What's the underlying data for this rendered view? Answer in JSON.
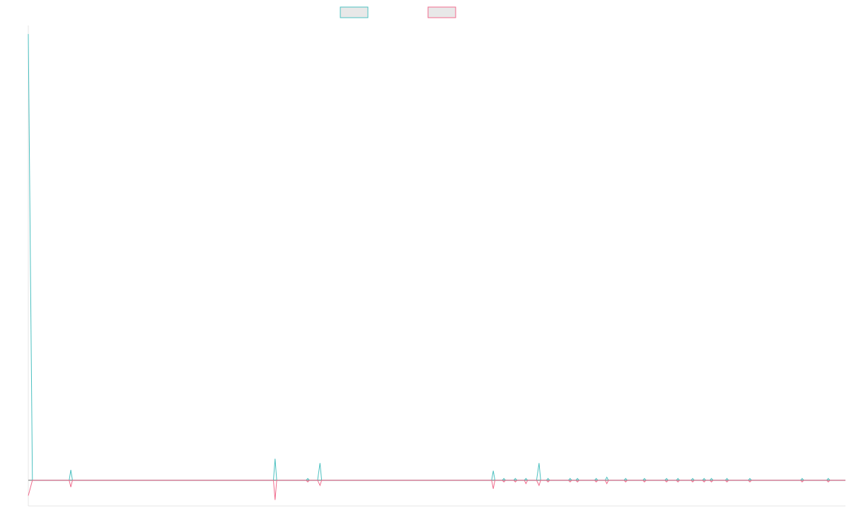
{
  "chart_data": {
    "type": "line",
    "title": "",
    "xlabel": "",
    "ylabel": "",
    "grid": false,
    "legend_placement": "top-center",
    "x_range": [
      0,
      1000
    ],
    "ylim": [
      -3,
      53
    ],
    "series": [
      {
        "color": "#4bc0c0",
        "legend_fill": "#e8e8e8",
        "points": [
          [
            0,
            52
          ],
          [
            5,
            0
          ],
          [
            50,
            0
          ],
          [
            52,
            1.2
          ],
          [
            54,
            0
          ],
          [
            300,
            0
          ],
          [
            302,
            2.5
          ],
          [
            304,
            0
          ],
          [
            340,
            0
          ],
          [
            342,
            0.2
          ],
          [
            344,
            0
          ],
          [
            354,
            0
          ],
          [
            357,
            2
          ],
          [
            359,
            0
          ],
          [
            567,
            0
          ],
          [
            569,
            1.1
          ],
          [
            571,
            0
          ],
          [
            580,
            0
          ],
          [
            582,
            0.2
          ],
          [
            584,
            0
          ],
          [
            594,
            0
          ],
          [
            596,
            0.2
          ],
          [
            598,
            0
          ],
          [
            607,
            0
          ],
          [
            609,
            0.2
          ],
          [
            611,
            0
          ],
          [
            622,
            0
          ],
          [
            625,
            2
          ],
          [
            627,
            0
          ],
          [
            634,
            0
          ],
          [
            636,
            0.2
          ],
          [
            638,
            0
          ],
          [
            661,
            0
          ],
          [
            663,
            0.2
          ],
          [
            665,
            0
          ],
          [
            670,
            0
          ],
          [
            672,
            0.2
          ],
          [
            674,
            0
          ],
          [
            693,
            0
          ],
          [
            695,
            0.2
          ],
          [
            697,
            0
          ],
          [
            706,
            0
          ],
          [
            708,
            0.35
          ],
          [
            710,
            0
          ],
          [
            729,
            0
          ],
          [
            731,
            0.2
          ],
          [
            733,
            0
          ],
          [
            752,
            0
          ],
          [
            754,
            0.2
          ],
          [
            756,
            0
          ],
          [
            779,
            0
          ],
          [
            781,
            0.2
          ],
          [
            783,
            0
          ],
          [
            793,
            0
          ],
          [
            795,
            0.2
          ],
          [
            797,
            0
          ],
          [
            811,
            0
          ],
          [
            813,
            0.2
          ],
          [
            815,
            0
          ],
          [
            825,
            0
          ],
          [
            827,
            0.2
          ],
          [
            829,
            0
          ],
          [
            834,
            0
          ],
          [
            836,
            0.2
          ],
          [
            838,
            0
          ],
          [
            853,
            0
          ],
          [
            855,
            0.2
          ],
          [
            857,
            0
          ],
          [
            881,
            0
          ],
          [
            883,
            0.2
          ],
          [
            885,
            0
          ],
          [
            945,
            0
          ],
          [
            947,
            0.2
          ],
          [
            949,
            0
          ],
          [
            977,
            0
          ],
          [
            979,
            0.2
          ],
          [
            981,
            0
          ],
          [
            1000,
            0
          ]
        ]
      },
      {
        "color": "#f06a8c",
        "legend_fill": "#e8e8e8",
        "points": [
          [
            0,
            -1.8
          ],
          [
            5,
            0
          ],
          [
            50,
            0
          ],
          [
            52,
            -0.8
          ],
          [
            54,
            0
          ],
          [
            300,
            0
          ],
          [
            302,
            -2.3
          ],
          [
            304,
            0
          ],
          [
            340,
            0
          ],
          [
            342,
            -0.2
          ],
          [
            344,
            0
          ],
          [
            354,
            0
          ],
          [
            357,
            -0.6
          ],
          [
            359,
            0
          ],
          [
            567,
            0
          ],
          [
            569,
            -1
          ],
          [
            571,
            0
          ],
          [
            580,
            0
          ],
          [
            582,
            -0.2
          ],
          [
            584,
            0
          ],
          [
            594,
            0
          ],
          [
            596,
            -0.2
          ],
          [
            598,
            0
          ],
          [
            607,
            0
          ],
          [
            609,
            -0.4
          ],
          [
            611,
            0
          ],
          [
            622,
            0
          ],
          [
            625,
            -0.6
          ],
          [
            627,
            0
          ],
          [
            634,
            0
          ],
          [
            636,
            -0.2
          ],
          [
            638,
            0
          ],
          [
            661,
            0
          ],
          [
            663,
            -0.2
          ],
          [
            665,
            0
          ],
          [
            670,
            0
          ],
          [
            672,
            -0.2
          ],
          [
            674,
            0
          ],
          [
            693,
            0
          ],
          [
            695,
            -0.2
          ],
          [
            697,
            0
          ],
          [
            706,
            0
          ],
          [
            708,
            -0.4
          ],
          [
            710,
            0
          ],
          [
            729,
            0
          ],
          [
            731,
            -0.2
          ],
          [
            733,
            0
          ],
          [
            752,
            0
          ],
          [
            754,
            -0.2
          ],
          [
            756,
            0
          ],
          [
            779,
            0
          ],
          [
            781,
            -0.2
          ],
          [
            783,
            0
          ],
          [
            793,
            0
          ],
          [
            795,
            -0.2
          ],
          [
            797,
            0
          ],
          [
            811,
            0
          ],
          [
            813,
            -0.2
          ],
          [
            815,
            0
          ],
          [
            825,
            0
          ],
          [
            827,
            -0.2
          ],
          [
            829,
            0
          ],
          [
            834,
            0
          ],
          [
            836,
            -0.2
          ],
          [
            838,
            0
          ],
          [
            853,
            0
          ],
          [
            855,
            -0.2
          ],
          [
            857,
            0
          ],
          [
            881,
            0
          ],
          [
            883,
            -0.2
          ],
          [
            885,
            0
          ],
          [
            945,
            0
          ],
          [
            947,
            -0.2
          ],
          [
            949,
            0
          ],
          [
            977,
            0
          ],
          [
            979,
            -0.2
          ],
          [
            981,
            0
          ],
          [
            1000,
            0
          ]
        ]
      }
    ]
  }
}
